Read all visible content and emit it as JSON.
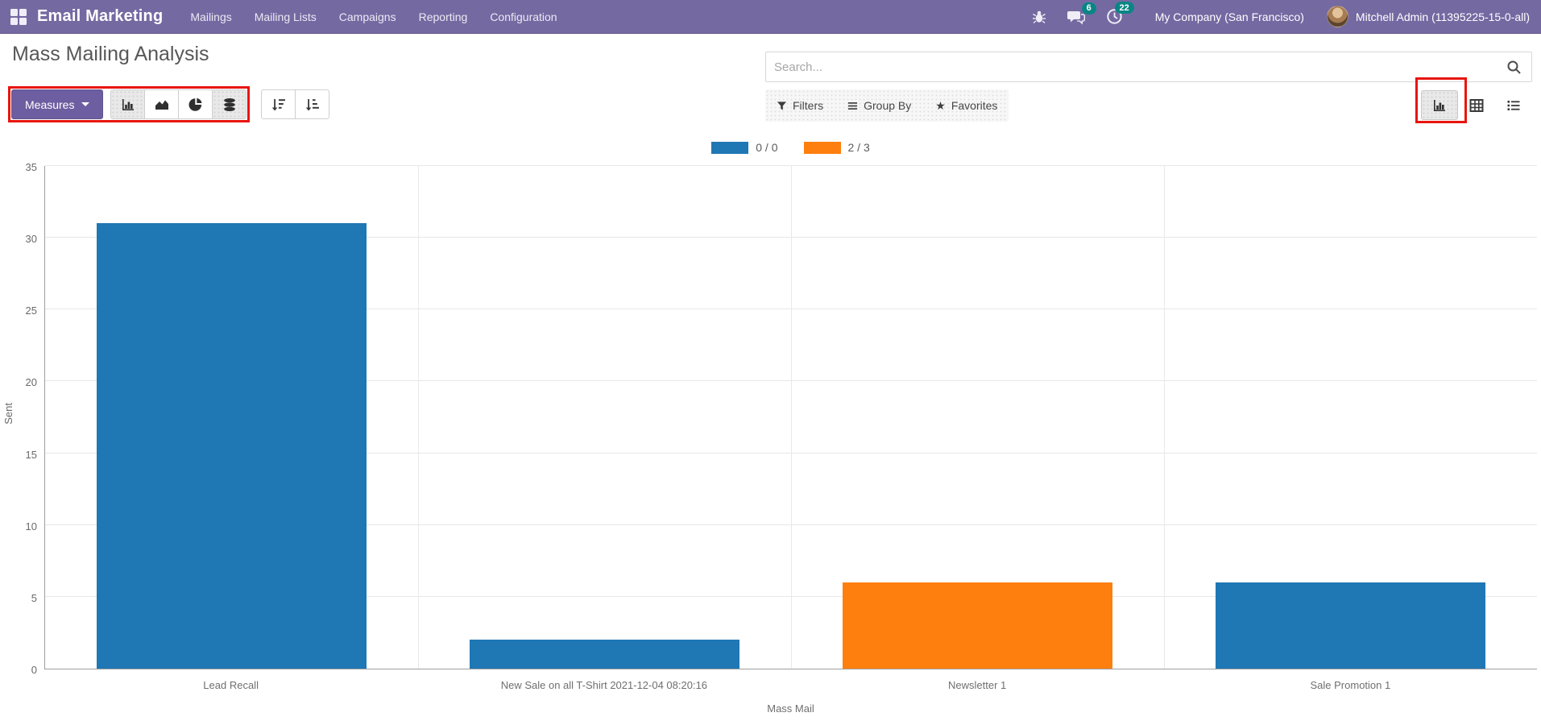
{
  "colors": {
    "navbar": "#7569a2",
    "primary_button": "#6d5ea1",
    "badge": "#0a8585",
    "annotation_red": "#e8150d",
    "series_blue": "#1f77b4",
    "series_orange": "#ff7f0e"
  },
  "nav": {
    "brand": "Email Marketing",
    "items": [
      "Mailings",
      "Mailing Lists",
      "Campaigns",
      "Reporting",
      "Configuration"
    ],
    "messages_badge": "6",
    "activities_badge": "22",
    "company": "My Company (San Francisco)",
    "user": "Mitchell Admin (11395225-15-0-all)"
  },
  "header": {
    "title": "Mass Mailing Analysis"
  },
  "search": {
    "placeholder": "Search..."
  },
  "toolbar": {
    "measures_label": "Measures"
  },
  "filters": {
    "filters_label": "Filters",
    "group_by_label": "Group By",
    "favorites_label": "Favorites"
  },
  "chart_data": {
    "type": "bar",
    "title": "",
    "categories": [
      "Lead Recall",
      "New Sale on all T-Shirt 2021-12-04 08:20:16",
      "Newsletter 1",
      "Sale Promotion 1"
    ],
    "series": [
      {
        "name": "0 / 0",
        "color": "#1f77b4",
        "values": [
          31,
          2,
          null,
          6
        ]
      },
      {
        "name": "2 / 3",
        "color": "#ff7f0e",
        "values": [
          null,
          null,
          6,
          null
        ]
      }
    ],
    "xlabel": "Mass Mail",
    "ylabel": "Sent",
    "ylim": [
      0,
      35
    ],
    "yticks": [
      0,
      5,
      10,
      15,
      20,
      25,
      30,
      35
    ],
    "legend_position": "top-center",
    "grid": true
  }
}
